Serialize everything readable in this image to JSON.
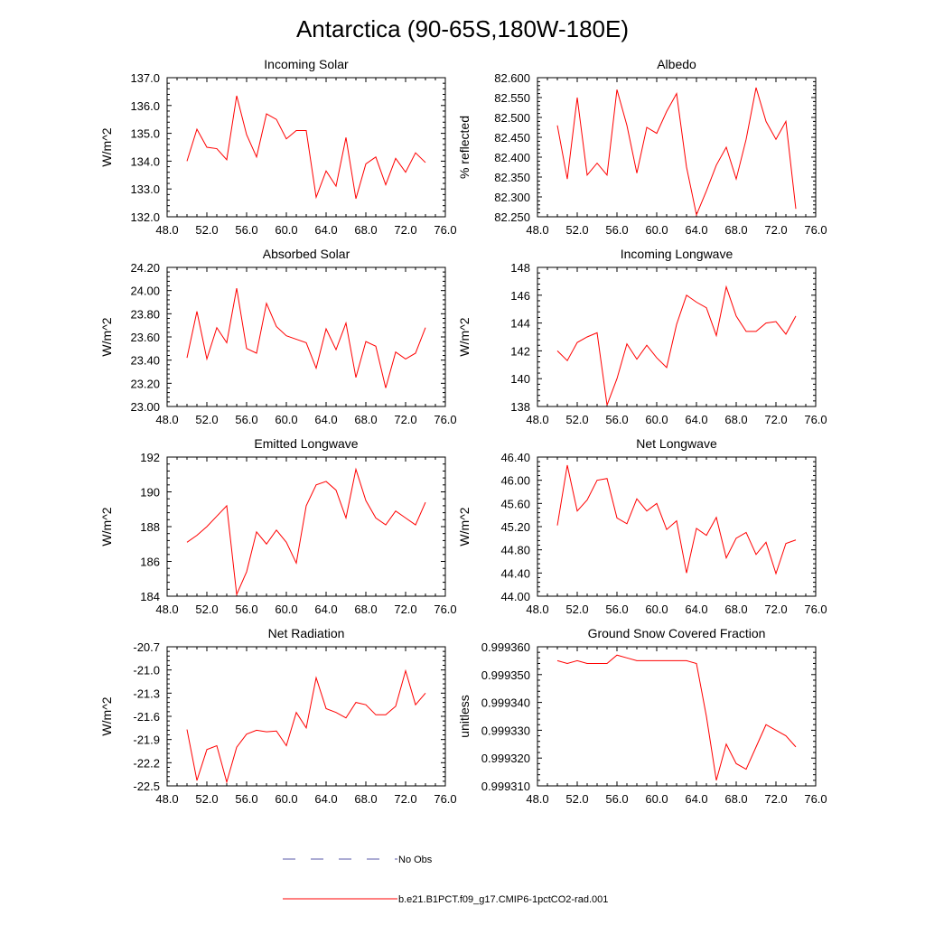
{
  "page_title": "Antarctica (90-65S,180W-180E)",
  "x_ticks": [
    "48.0",
    "52.0",
    "56.0",
    "60.0",
    "64.0",
    "68.0",
    "72.0",
    "76.0"
  ],
  "x_values": [
    50,
    51,
    52,
    53,
    54,
    55,
    56,
    57,
    58,
    59,
    60,
    61,
    62,
    63,
    64,
    65,
    66,
    67,
    68,
    69,
    70,
    71,
    72,
    73,
    74
  ],
  "legend": {
    "entries": [
      {
        "label": "No Obs",
        "color": "#5a5aa8",
        "style": "dashed"
      },
      {
        "label": "b.e21.B1PCT.f09_g17.CMIP6-1pctCO2-rad.001",
        "color": "#ff0000",
        "style": "solid"
      }
    ]
  },
  "chart_data": [
    {
      "type": "line",
      "title": "Incoming Solar",
      "ylabel": "W/m^2",
      "xlim": [
        48,
        76
      ],
      "ylim": [
        132,
        137
      ],
      "y_ticks": [
        "132.0",
        "133.0",
        "134.0",
        "135.0",
        "136.0",
        "137.0"
      ],
      "series": [
        {
          "name": "b.e21.B1PCT.f09_g17.CMIP6-1pctCO2-rad.001",
          "color": "#ff0000",
          "values": [
            134.0,
            135.15,
            134.5,
            134.45,
            134.05,
            136.35,
            134.95,
            134.15,
            135.7,
            135.5,
            134.8,
            135.1,
            135.1,
            132.7,
            133.65,
            133.1,
            134.85,
            132.65,
            133.9,
            134.15,
            133.15,
            134.1,
            133.6,
            134.3,
            133.95
          ]
        }
      ]
    },
    {
      "type": "line",
      "title": "Albedo",
      "ylabel": "% reflected",
      "xlim": [
        48,
        76
      ],
      "ylim": [
        82.25,
        82.6
      ],
      "y_ticks": [
        "82.250",
        "82.300",
        "82.350",
        "82.400",
        "82.450",
        "82.500",
        "82.550",
        "82.600"
      ],
      "series": [
        {
          "name": "b.e21.B1PCT.f09_g17.CMIP6-1pctCO2-rad.001",
          "color": "#ff0000",
          "values": [
            82.48,
            82.345,
            82.55,
            82.355,
            82.385,
            82.355,
            82.57,
            82.48,
            82.36,
            82.475,
            82.46,
            82.515,
            82.56,
            82.375,
            82.255,
            82.315,
            82.38,
            82.425,
            82.345,
            82.445,
            82.575,
            82.49,
            82.445,
            82.49,
            82.27
          ]
        }
      ]
    },
    {
      "type": "line",
      "title": "Absorbed Solar",
      "ylabel": "W/m^2",
      "xlim": [
        48,
        76
      ],
      "ylim": [
        23.0,
        24.2
      ],
      "y_ticks": [
        "23.00",
        "23.20",
        "23.40",
        "23.60",
        "23.80",
        "24.00",
        "24.20"
      ],
      "series": [
        {
          "name": "b.e21.B1PCT.f09_g17.CMIP6-1pctCO2-rad.001",
          "color": "#ff0000",
          "values": [
            23.42,
            23.82,
            23.41,
            23.68,
            23.55,
            24.02,
            23.5,
            23.46,
            23.89,
            23.69,
            23.61,
            23.58,
            23.55,
            23.33,
            23.67,
            23.49,
            23.72,
            23.25,
            23.56,
            23.52,
            23.16,
            23.47,
            23.41,
            23.46,
            23.68
          ]
        }
      ]
    },
    {
      "type": "line",
      "title": "Incoming Longwave",
      "ylabel": "W/m^2",
      "xlim": [
        48,
        76
      ],
      "ylim": [
        138,
        148
      ],
      "y_ticks": [
        "138",
        "140",
        "142",
        "144",
        "146",
        "148"
      ],
      "series": [
        {
          "name": "b.e21.B1PCT.f09_g17.CMIP6-1pctCO2-rad.001",
          "color": "#ff0000",
          "values": [
            142.0,
            141.3,
            142.6,
            143.0,
            143.3,
            138.1,
            140.0,
            142.5,
            141.4,
            142.4,
            141.5,
            140.8,
            143.9,
            146.0,
            145.5,
            145.1,
            143.1,
            146.6,
            144.5,
            143.4,
            143.4,
            144.0,
            144.1,
            143.2,
            144.5
          ]
        }
      ]
    },
    {
      "type": "line",
      "title": "Emitted Longwave",
      "ylabel": "W/m^2",
      "xlim": [
        48,
        76
      ],
      "ylim": [
        184,
        192
      ],
      "y_ticks": [
        "184",
        "186",
        "188",
        "190",
        "192"
      ],
      "series": [
        {
          "name": "b.e21.B1PCT.f09_g17.CMIP6-1pctCO2-rad.001",
          "color": "#ff0000",
          "values": [
            187.1,
            187.5,
            188.0,
            188.6,
            189.2,
            184.1,
            185.4,
            187.7,
            187.0,
            187.8,
            187.1,
            185.9,
            189.2,
            190.4,
            190.6,
            190.1,
            188.5,
            191.3,
            189.5,
            188.5,
            188.1,
            188.9,
            188.5,
            188.1,
            189.4
          ]
        }
      ]
    },
    {
      "type": "line",
      "title": "Net Longwave",
      "ylabel": "W/m^2",
      "xlim": [
        48,
        76
      ],
      "ylim": [
        44.0,
        46.4
      ],
      "y_ticks": [
        "44.00",
        "44.40",
        "44.80",
        "45.20",
        "45.60",
        "46.00",
        "46.40"
      ],
      "series": [
        {
          "name": "b.e21.B1PCT.f09_g17.CMIP6-1pctCO2-rad.001",
          "color": "#ff0000",
          "values": [
            45.22,
            46.26,
            45.47,
            45.66,
            46.0,
            46.03,
            45.35,
            45.25,
            45.68,
            45.47,
            45.6,
            45.15,
            45.3,
            44.4,
            45.17,
            45.05,
            45.36,
            44.66,
            45.0,
            45.1,
            44.72,
            44.93,
            44.39,
            44.91,
            44.97
          ]
        }
      ]
    },
    {
      "type": "line",
      "title": "Net Radiation",
      "ylabel": "W/m^2",
      "xlim": [
        48,
        76
      ],
      "ylim": [
        -22.5,
        -20.7
      ],
      "y_ticks": [
        "-22.5",
        "-22.2",
        "-21.9",
        "-21.6",
        "-21.3",
        "-21.0",
        "-20.7"
      ],
      "series": [
        {
          "name": "b.e21.B1PCT.f09_g17.CMIP6-1pctCO2-rad.001",
          "color": "#ff0000",
          "values": [
            -21.77,
            -22.43,
            -22.03,
            -21.98,
            -22.45,
            -22.0,
            -21.83,
            -21.78,
            -21.8,
            -21.79,
            -21.98,
            -21.55,
            -21.75,
            -21.1,
            -21.5,
            -21.55,
            -21.62,
            -21.42,
            -21.45,
            -21.58,
            -21.58,
            -21.47,
            -21.01,
            -21.45,
            -21.3
          ]
        }
      ]
    },
    {
      "type": "line",
      "title": "Ground Snow Covered Fraction",
      "ylabel": "unitless",
      "xlim": [
        48,
        76
      ],
      "ylim": [
        0.99931,
        0.99936
      ],
      "y_ticks": [
        "0.999310",
        "0.999320",
        "0.999330",
        "0.999340",
        "0.999350",
        "0.999360"
      ],
      "series": [
        {
          "name": "b.e21.B1PCT.f09_g17.CMIP6-1pctCO2-rad.001",
          "color": "#ff0000",
          "values": [
            0.999355,
            0.999354,
            0.999355,
            0.999354,
            0.999354,
            0.999354,
            0.999357,
            0.999356,
            0.999355,
            0.999355,
            0.999355,
            0.999355,
            0.999355,
            0.999355,
            0.999354,
            0.999335,
            0.999312,
            0.999325,
            0.999318,
            0.999316,
            0.999324,
            0.999332,
            0.99933,
            0.999328,
            0.999324
          ]
        }
      ]
    }
  ]
}
